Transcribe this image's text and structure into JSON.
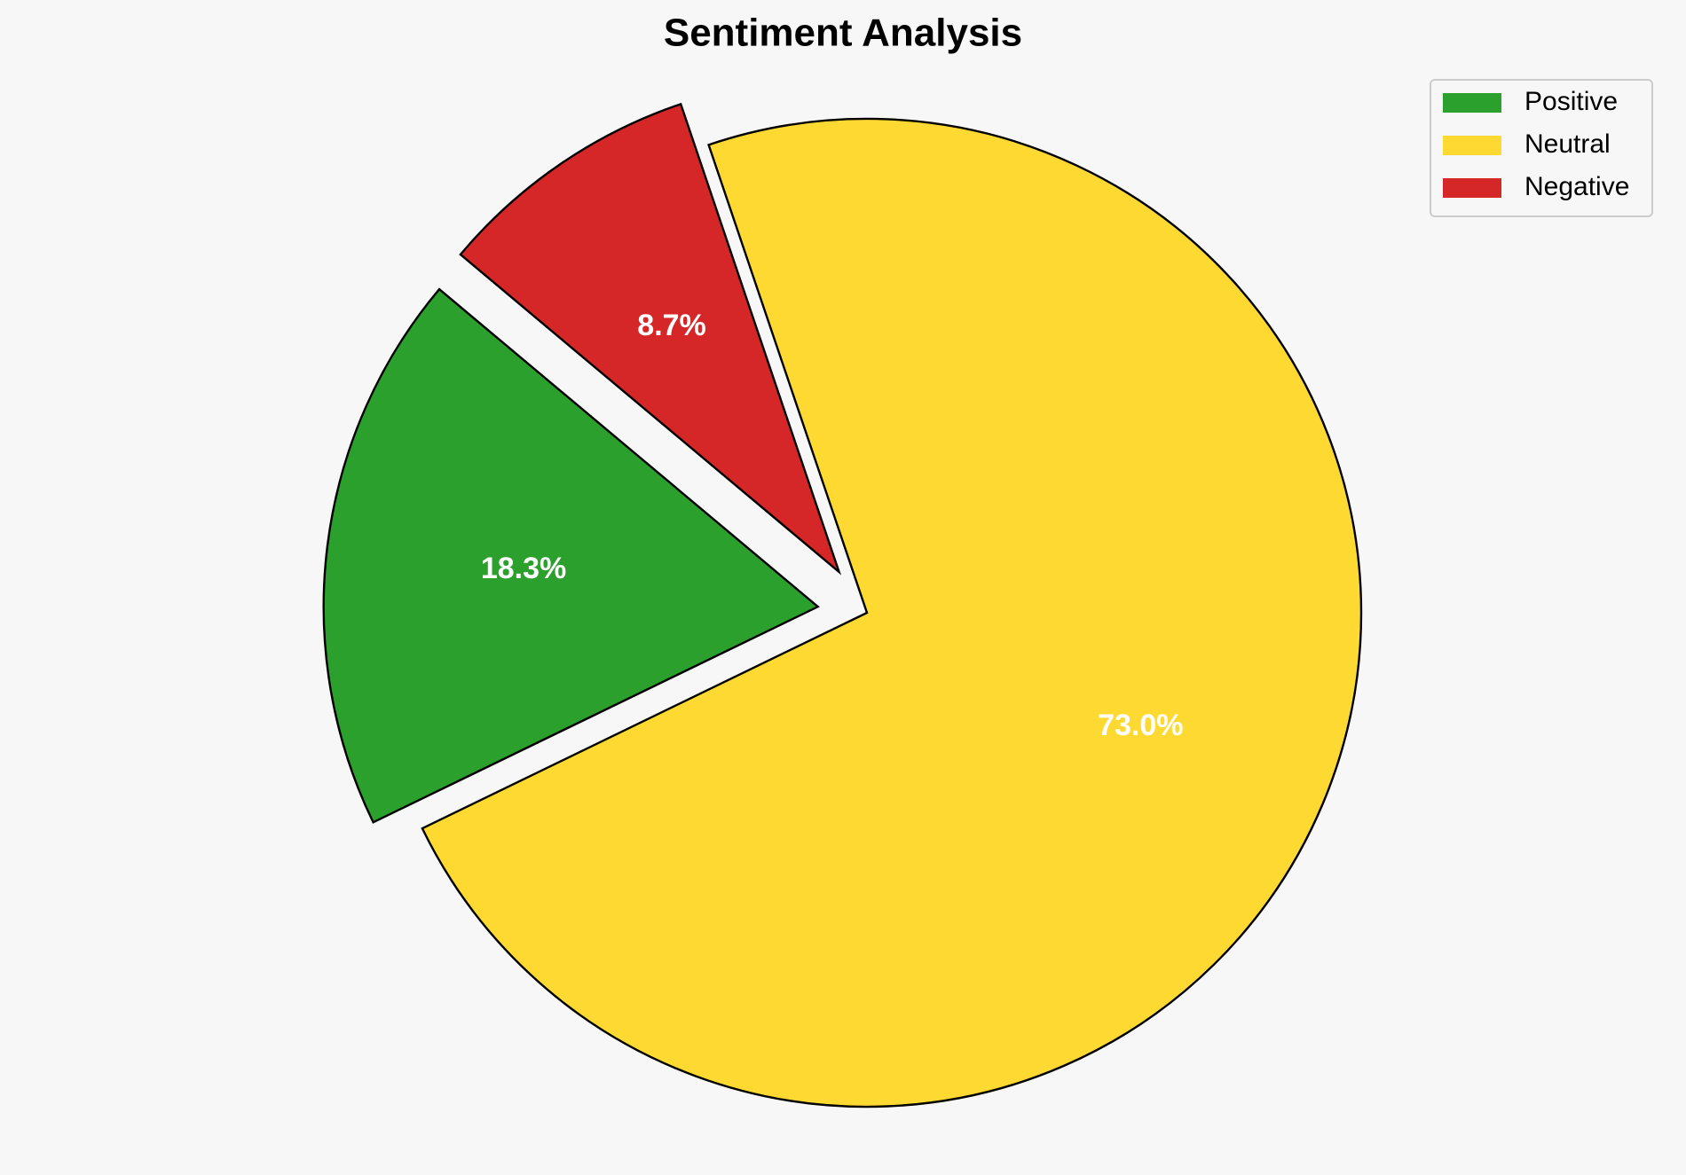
{
  "chart_data": {
    "type": "pie",
    "title": "Sentiment Analysis",
    "categories": [
      "Positive",
      "Neutral",
      "Negative"
    ],
    "values": [
      18.3,
      73.0,
      8.7
    ],
    "value_labels": [
      "18.3%",
      "73.0%",
      "8.7%"
    ],
    "colors": [
      "#2ca02c",
      "#fed931",
      "#d62728"
    ],
    "explode": [
      0.1,
      0,
      0.1
    ],
    "startangle": 140,
    "legend": "upper right"
  }
}
